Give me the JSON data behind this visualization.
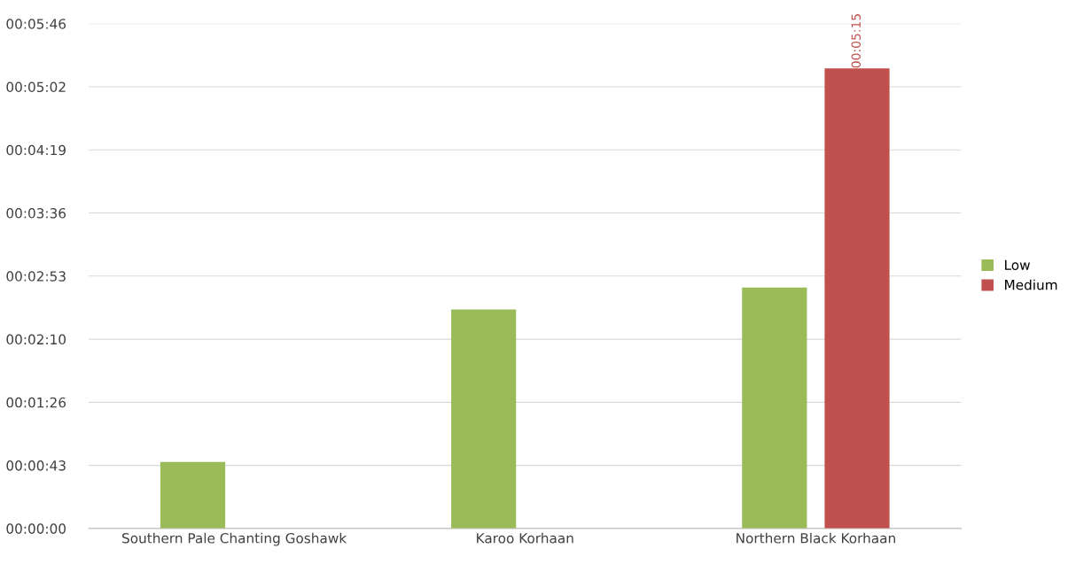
{
  "chart_data": {
    "type": "bar",
    "categories": [
      "Southern Pale Chanting Goshawk",
      "Karoo Korhaan",
      "Northern Black Korhaan"
    ],
    "series": [
      {
        "name": "Low",
        "color": "#9bbb59",
        "values": [
          45.5,
          150,
          165
        ]
      },
      {
        "name": "Medium",
        "color": "#c0504d",
        "values": [
          null,
          null,
          315
        ],
        "value_labels": [
          null,
          null,
          "00:05:15"
        ]
      }
    ],
    "ylim": [
      0,
      345.6
    ],
    "yticks": [
      {
        "value": 0,
        "label": "00:00:00"
      },
      {
        "value": 43.2,
        "label": "00:00:43"
      },
      {
        "value": 86.4,
        "label": "00:01:26"
      },
      {
        "value": 129.6,
        "label": "00:02:10"
      },
      {
        "value": 172.8,
        "label": "00:02:53"
      },
      {
        "value": 216,
        "label": "00:03:36"
      },
      {
        "value": 259.2,
        "label": "00:04:19"
      },
      {
        "value": 302.4,
        "label": "00:05:02"
      },
      {
        "value": 345.6,
        "label": "00:05:46"
      }
    ],
    "grid": "y",
    "legend": "right"
  }
}
